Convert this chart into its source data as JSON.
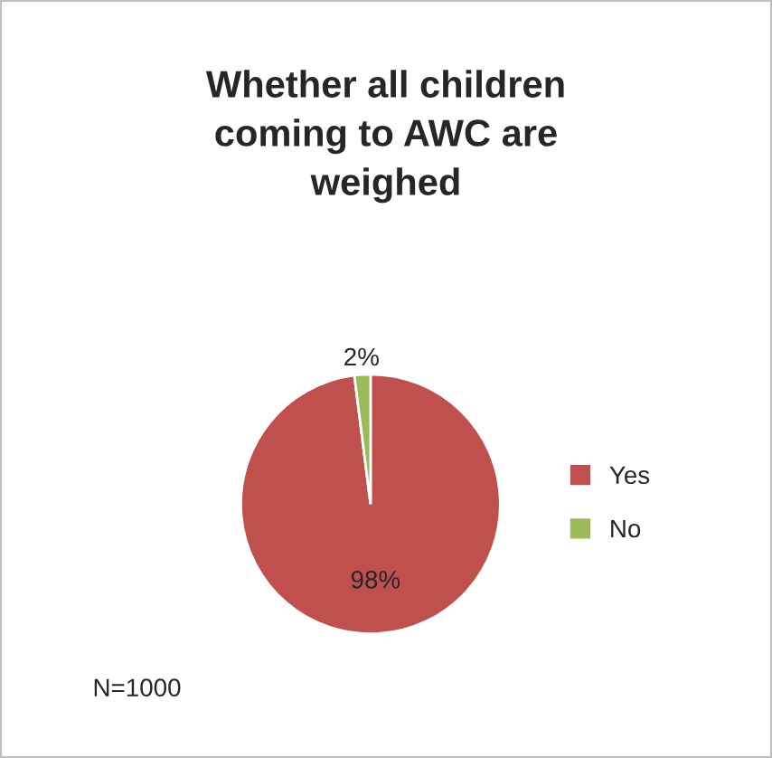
{
  "chart_data": {
    "type": "pie",
    "title": "Whether all children\ncoming to AWC are\nweighed",
    "categories": [
      "Yes",
      "No"
    ],
    "values": [
      98,
      2
    ],
    "colors": [
      "#c0504d",
      "#9bbb59"
    ],
    "value_labels": [
      "98%",
      "2%"
    ],
    "legend": "right",
    "annotations": [
      "N=1000"
    ]
  }
}
